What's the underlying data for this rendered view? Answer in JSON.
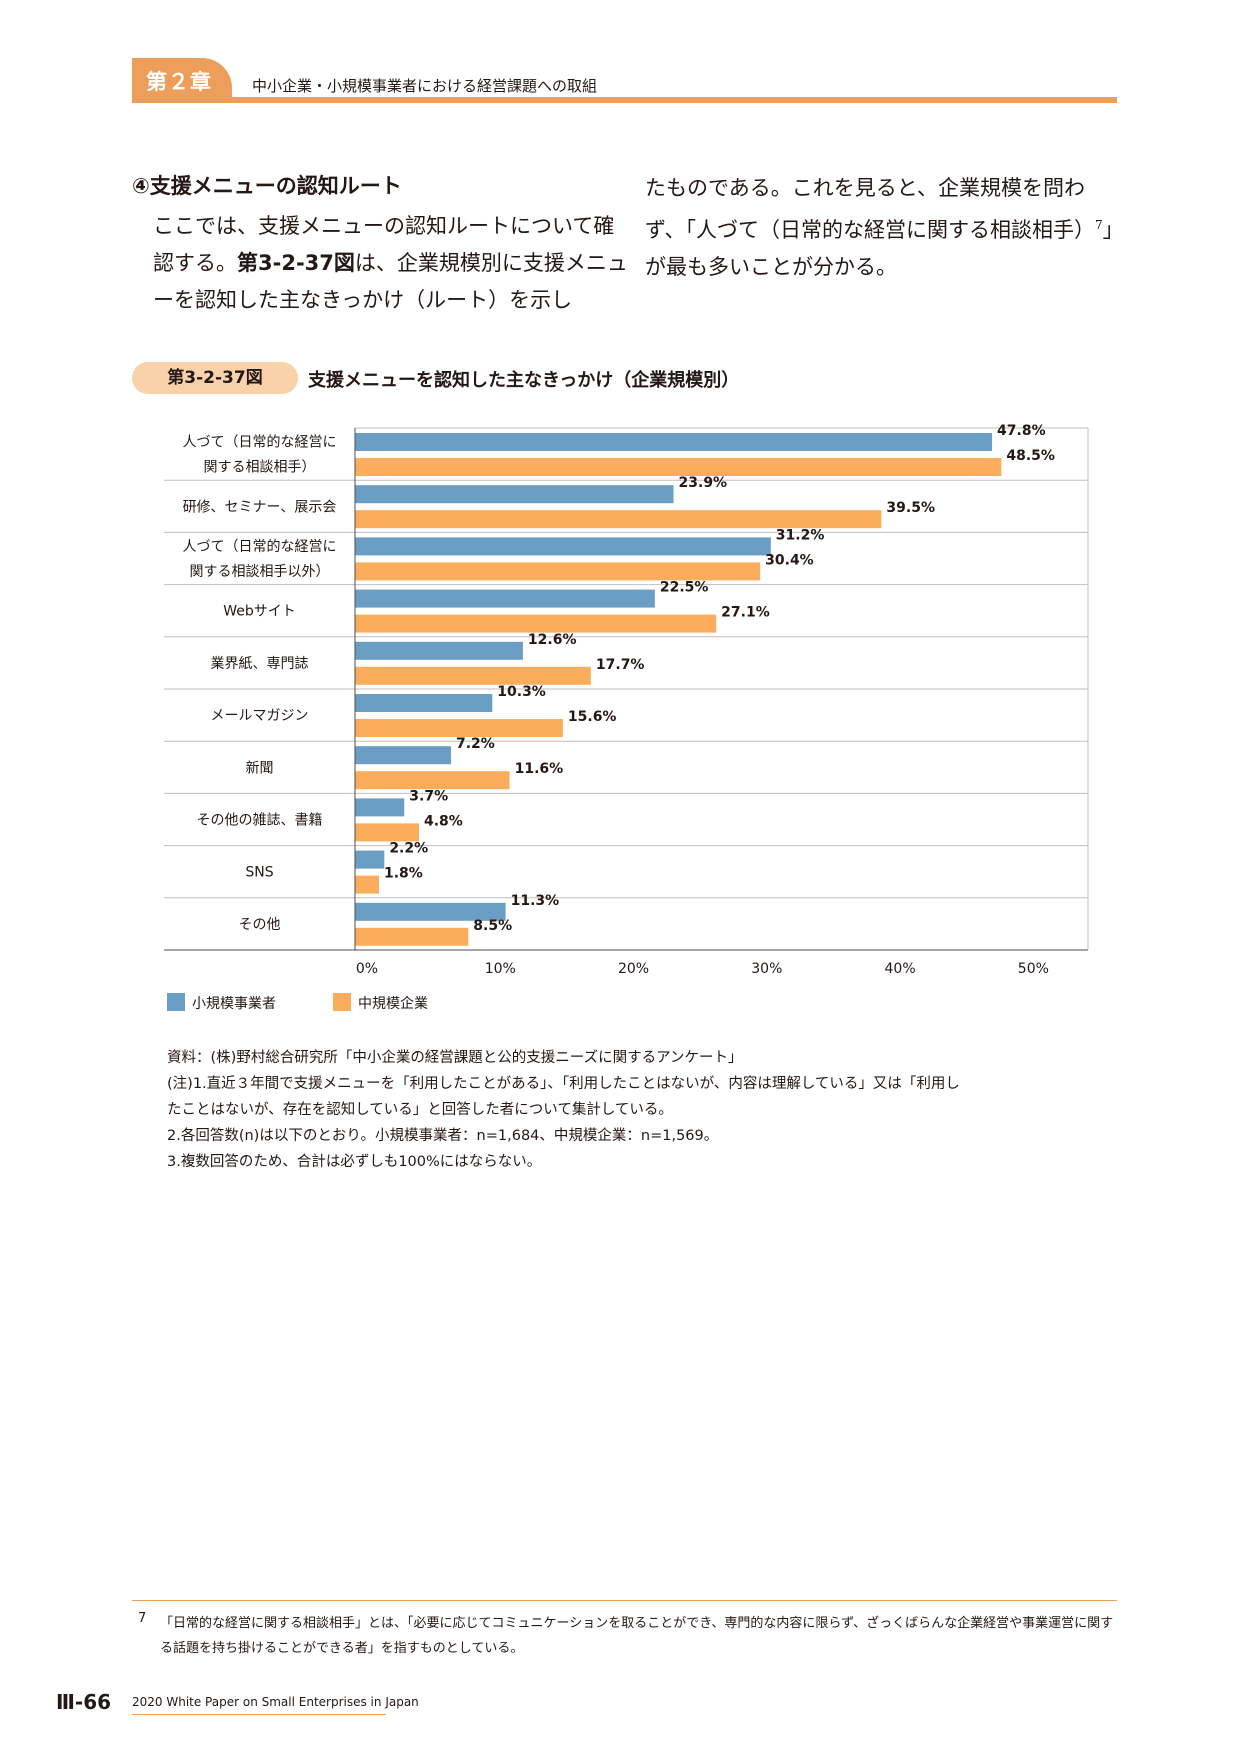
{
  "header": {
    "chapter_label": "第２章",
    "chapter_title": "中小企業・小規模事業者における経営課題への取組"
  },
  "section": {
    "heading": "④支援メニューの認知ルート",
    "left_para": {
      "p1": "ここでは、支援メニューの認知ルートについて確認する。",
      "figref": "第3-2-37図",
      "p2": "は、企業規模別に支援メニューを認知した主なきっかけ（ルート）を示し"
    },
    "right_para": {
      "p1": "たものである。これを見ると、企業規模を問わず、「人づて（日常的な経営に関する相談相手）",
      "sup": "7",
      "p2": "」が最も多いことが分かる。"
    }
  },
  "figure": {
    "badge": "第3-2-37図",
    "title": "支援メニューを認知した主なきっかけ（企業規模別）"
  },
  "chart_data": {
    "type": "bar",
    "orientation": "horizontal",
    "categories": [
      [
        "人づて（日常的な経営に",
        "関する相談相手）"
      ],
      [
        "研修、セミナー、展示会"
      ],
      [
        "人づて（日常的な経営に",
        "関する相談相手以外）"
      ],
      [
        "Webサイト"
      ],
      [
        "業界紙、専門誌"
      ],
      [
        "メールマガジン"
      ],
      [
        "新聞"
      ],
      [
        "その他の雑誌、書籍"
      ],
      [
        "SNS"
      ],
      [
        "その他"
      ]
    ],
    "series": [
      {
        "name": "小規模事業者",
        "color": "#6a9ec4",
        "values": [
          47.8,
          23.9,
          31.2,
          22.5,
          12.6,
          10.3,
          7.2,
          3.7,
          2.2,
          11.3
        ],
        "labels": [
          "47.8%",
          "23.9%",
          "31.2%",
          "22.5%",
          "12.6%",
          "10.3%",
          "7.2%",
          "3.7%",
          "2.2%",
          "11.3%"
        ]
      },
      {
        "name": "中規模企業",
        "color": "#fbad5c",
        "values": [
          48.5,
          39.5,
          30.4,
          27.1,
          17.7,
          15.6,
          11.6,
          4.8,
          1.8,
          8.5
        ],
        "labels": [
          "48.5%",
          "39.5%",
          "30.4%",
          "27.1%",
          "17.7%",
          "15.6%",
          "11.6%",
          "4.8%",
          "1.8%",
          "8.5%"
        ]
      }
    ],
    "xlim": [
      0,
      55
    ],
    "ticks": [
      "0%",
      "10%",
      "20%",
      "30%",
      "40%",
      "50%"
    ],
    "tick_values": [
      0,
      10,
      20,
      30,
      40,
      50
    ],
    "legend_position": "bottom-left"
  },
  "notes": {
    "source": "資料：(株)野村総合研究所「中小企業の経営課題と公的支援ニーズに関するアンケート」",
    "note1a": "(注)1.直近３年間で支援メニューを「利用したことがある」、「利用したことはないが、内容は理解している」又は「利用し",
    "note1b": "たことはないが、存在を認知している」と回答した者について集計している。",
    "note2": "2.各回答数(n)は以下のとおり。小規模事業者：n=1,684、中規模企業：n=1,569。",
    "note3": "3.複数回答のため、合計は必ずしも100%にはならない。"
  },
  "footnote": {
    "num": "7",
    "text": "「日常的な経営に関する相談相手」とは、「必要に応じてコミュニケーションを取ることができ、専門的な内容に限らず、ざっくばらんな企業経営や事業運営に関する話題を持ち掛けることができる者」を指すものとしている。"
  },
  "footer": {
    "page_number": "Ⅲ-66",
    "publication": "2020 White Paper on Small Enterprises in Japan"
  }
}
